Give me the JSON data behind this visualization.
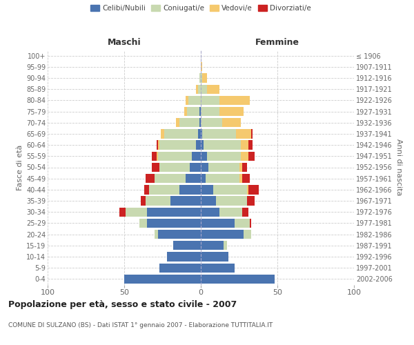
{
  "age_groups": [
    "0-4",
    "5-9",
    "10-14",
    "15-19",
    "20-24",
    "25-29",
    "30-34",
    "35-39",
    "40-44",
    "45-49",
    "50-54",
    "55-59",
    "60-64",
    "65-69",
    "70-74",
    "75-79",
    "80-84",
    "85-89",
    "90-94",
    "95-99",
    "100+"
  ],
  "birth_years": [
    "2002-2006",
    "1997-2001",
    "1992-1996",
    "1987-1991",
    "1982-1986",
    "1977-1981",
    "1972-1976",
    "1967-1971",
    "1962-1966",
    "1957-1961",
    "1952-1956",
    "1947-1951",
    "1942-1946",
    "1937-1941",
    "1932-1936",
    "1927-1931",
    "1922-1926",
    "1917-1921",
    "1912-1916",
    "1907-1911",
    "≤ 1906"
  ],
  "males": {
    "celibi": [
      50,
      27,
      22,
      18,
      28,
      35,
      35,
      20,
      14,
      10,
      7,
      6,
      3,
      2,
      1,
      1,
      0,
      0,
      0,
      0,
      0
    ],
    "coniugati": [
      0,
      0,
      0,
      0,
      2,
      5,
      14,
      16,
      20,
      20,
      20,
      22,
      24,
      22,
      13,
      8,
      8,
      2,
      1,
      0,
      0
    ],
    "vedovi": [
      0,
      0,
      0,
      0,
      0,
      0,
      0,
      0,
      0,
      0,
      0,
      1,
      1,
      2,
      2,
      2,
      2,
      1,
      0,
      0,
      0
    ],
    "divorziati": [
      0,
      0,
      0,
      0,
      0,
      0,
      4,
      3,
      3,
      6,
      5,
      3,
      1,
      0,
      0,
      0,
      0,
      0,
      0,
      0,
      0
    ]
  },
  "females": {
    "nubili": [
      48,
      22,
      18,
      15,
      28,
      22,
      12,
      10,
      8,
      3,
      5,
      4,
      2,
      1,
      0,
      0,
      0,
      0,
      0,
      0,
      0
    ],
    "coniugate": [
      0,
      0,
      0,
      2,
      5,
      10,
      15,
      20,
      22,
      22,
      20,
      22,
      24,
      22,
      14,
      12,
      12,
      4,
      1,
      0,
      0
    ],
    "vedove": [
      0,
      0,
      0,
      0,
      0,
      0,
      0,
      0,
      1,
      2,
      2,
      5,
      5,
      10,
      12,
      16,
      20,
      8,
      3,
      1,
      0
    ],
    "divorziate": [
      0,
      0,
      0,
      0,
      0,
      1,
      4,
      5,
      7,
      5,
      3,
      4,
      3,
      1,
      0,
      0,
      0,
      0,
      0,
      0,
      0
    ]
  },
  "colors": {
    "celibi": "#4a74b0",
    "coniugati": "#c8d9b0",
    "vedovi": "#f5c96e",
    "divorziati": "#cc2222"
  },
  "title": "Popolazione per età, sesso e stato civile - 2007",
  "subtitle": "COMUNE DI SULZANO (BS) - Dati ISTAT 1° gennaio 2007 - Elaborazione TUTTITALIA.IT",
  "xlabel_left": "Maschi",
  "xlabel_right": "Femmine",
  "ylabel_left": "Fasce di età",
  "ylabel_right": "Anni di nascita",
  "legend_labels": [
    "Celibi/Nubili",
    "Coniugati/e",
    "Vedovi/e",
    "Divorziati/e"
  ],
  "bg_color": "#ffffff",
  "grid_color": "#cccccc",
  "xlim": 100
}
